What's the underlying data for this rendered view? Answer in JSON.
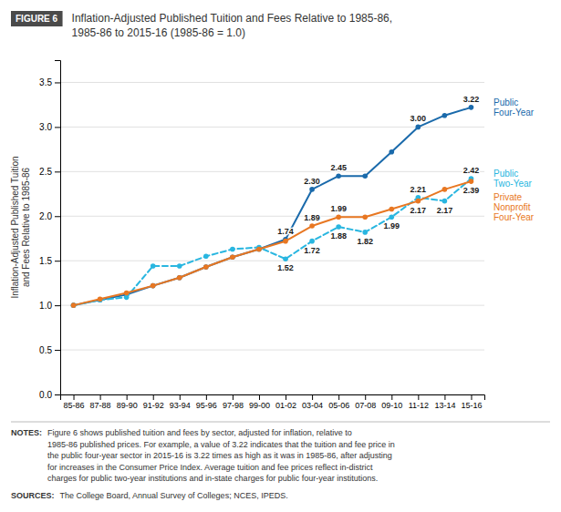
{
  "chart_data": {
    "type": "line",
    "badge": "FIGURE 6",
    "title": "Inflation-Adjusted Published Tuition and Fees Relative to 1985-86,",
    "subtitle": "1985-86 to 2015-16 (1985-86 = 1.0)",
    "y_label": [
      "Inflation-Adjusted Published Tuition",
      "and Fees Relative to 1985-86"
    ],
    "categories": [
      "85-86",
      "87-88",
      "89-90",
      "91-92",
      "93-94",
      "95-96",
      "97-98",
      "99-00",
      "01-02",
      "03-04",
      "05-06",
      "07-08",
      "09-10",
      "11-12",
      "13-14",
      "15-16"
    ],
    "series": [
      {
        "name": "Public Four-Year",
        "color": "#1a6aab",
        "line_style": "solid",
        "marker": "circle",
        "values": [
          1.0,
          1.06,
          1.12,
          1.22,
          1.31,
          1.43,
          1.54,
          1.63,
          1.74,
          2.3,
          2.45,
          2.45,
          2.72,
          3.0,
          3.13,
          3.22
        ],
        "value_labels": [
          null,
          null,
          null,
          null,
          null,
          null,
          null,
          null,
          "1.74",
          "2.30",
          "2.45",
          null,
          null,
          "3.00",
          null,
          "3.22"
        ]
      },
      {
        "name": "Public Two-Year",
        "color": "#29b6e0",
        "line_style": "dashed",
        "marker": "circle",
        "values": [
          1.0,
          1.06,
          1.09,
          1.44,
          1.44,
          1.55,
          1.63,
          1.65,
          1.52,
          1.72,
          1.88,
          1.82,
          1.99,
          2.21,
          2.17,
          2.42
        ],
        "value_labels": [
          null,
          null,
          null,
          null,
          null,
          null,
          null,
          null,
          "1.52",
          "1.72",
          "1.88",
          "1.82",
          "1.99",
          "2.21",
          "2.17",
          "2.42"
        ]
      },
      {
        "name": "Private Nonprofit Four-Year",
        "color": "#e87722",
        "line_style": "solid",
        "marker": "circle",
        "values": [
          1.0,
          1.07,
          1.14,
          1.22,
          1.31,
          1.43,
          1.54,
          1.63,
          1.72,
          1.89,
          1.99,
          1.99,
          2.08,
          2.17,
          2.3,
          2.39
        ],
        "value_labels": [
          null,
          null,
          null,
          null,
          null,
          null,
          null,
          null,
          null,
          "1.89",
          "1.99",
          null,
          null,
          "2.17",
          null,
          "2.39"
        ]
      }
    ],
    "ylim": [
      0.0,
      3.75
    ],
    "yticks": [
      {
        "value": 0.0,
        "label": "0.0"
      },
      0.5,
      {
        "value": 1.0,
        "label": "1.0"
      },
      1.5,
      {
        "value": 2.0,
        "label": "2.0"
      },
      2.5,
      {
        "value": 3.0,
        "label": "3.0"
      },
      3.5
    ],
    "grid": true,
    "notes": {
      "label": "NOTES:",
      "lines": [
        "Figure 6 shows published tuition and fees by sector, adjusted for inflation, relative to",
        "1985-86 published prices. For example, a value of 3.22 indicates that the tuition and fee price in",
        "the public four-year sector in 2015-16 is 3.22 times as high as it was in 1985-86, after adjusting",
        "for increases in the Consumer Price Index. Average tuition and fee prices reflect in-district",
        "charges for public two-year institutions and in-state charges for public four-year institutions."
      ]
    },
    "sources": {
      "label": "SOURCES:",
      "text": "The College Board, Annual Survey of Colleges; NCES, IPEDS."
    }
  }
}
